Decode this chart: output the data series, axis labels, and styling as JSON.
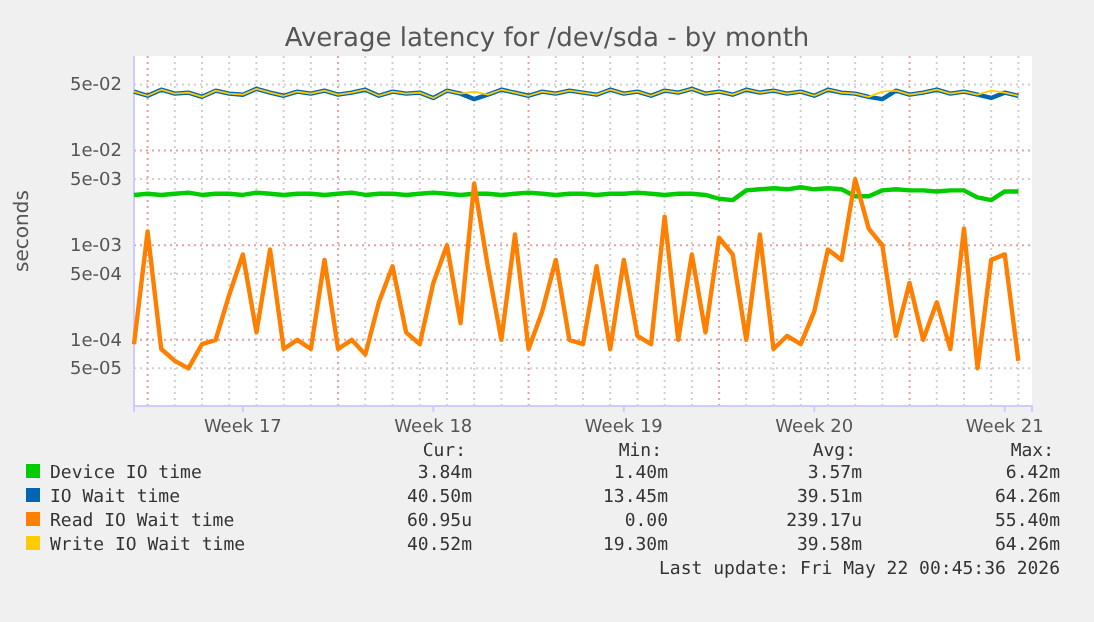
{
  "chart_data": {
    "type": "line",
    "title": "Average latency for /dev/sda - by month",
    "ylabel": "seconds",
    "log": true,
    "grid": true,
    "legend": "bottom",
    "xlim": [
      "2026-04-19T12:00",
      "2026-05-22T12:00"
    ],
    "xticks": [
      {
        "value": "2026-04-23T12:00",
        "label": "Week 17"
      },
      {
        "value": "2026-04-30T12:00",
        "label": "Week 18"
      },
      {
        "value": "2026-05-07T12:00",
        "label": "Week 19"
      },
      {
        "value": "2026-05-14T12:00",
        "label": "Week 20"
      },
      {
        "value": "2026-05-21T12:00",
        "label": "Week 21"
      }
    ],
    "ylim": [
      2e-05,
      0.1
    ],
    "yticks": [
      {
        "value": 5e-05,
        "label": "5e-05"
      },
      {
        "value": 0.0001,
        "label": "1e-04"
      },
      {
        "value": 0.0005,
        "label": "5e-04"
      },
      {
        "value": 0.001,
        "label": "1e-03"
      },
      {
        "value": 0.005,
        "label": "5e-03"
      },
      {
        "value": 0.01,
        "label": "1e-02"
      },
      {
        "value": 0.05,
        "label": "5e-02"
      }
    ],
    "x": [
      "2026-04-19T12:00",
      "2026-04-20T00:00",
      "2026-04-20T12:00",
      "2026-04-21T00:00",
      "2026-04-21T12:00",
      "2026-04-22T00:00",
      "2026-04-22T12:00",
      "2026-04-23T00:00",
      "2026-04-23T12:00",
      "2026-04-24T00:00",
      "2026-04-24T12:00",
      "2026-04-25T00:00",
      "2026-04-25T12:00",
      "2026-04-26T00:00",
      "2026-04-26T12:00",
      "2026-04-27T00:00",
      "2026-04-27T12:00",
      "2026-04-28T00:00",
      "2026-04-28T12:00",
      "2026-04-29T00:00",
      "2026-04-29T12:00",
      "2026-04-30T00:00",
      "2026-04-30T12:00",
      "2026-05-01T00:00",
      "2026-05-01T12:00",
      "2026-05-02T00:00",
      "2026-05-02T12:00",
      "2026-05-03T00:00",
      "2026-05-03T12:00",
      "2026-05-04T00:00",
      "2026-05-04T12:00",
      "2026-05-05T00:00",
      "2026-05-05T12:00",
      "2026-05-06T00:00",
      "2026-05-06T12:00",
      "2026-05-07T00:00",
      "2026-05-07T12:00",
      "2026-05-08T00:00",
      "2026-05-08T12:00",
      "2026-05-09T00:00",
      "2026-05-09T12:00",
      "2026-05-10T00:00",
      "2026-05-10T12:00",
      "2026-05-11T00:00",
      "2026-05-11T12:00",
      "2026-05-12T00:00",
      "2026-05-12T12:00",
      "2026-05-13T00:00",
      "2026-05-13T12:00",
      "2026-05-14T00:00",
      "2026-05-14T12:00",
      "2026-05-15T00:00",
      "2026-05-15T12:00",
      "2026-05-16T00:00",
      "2026-05-16T12:00",
      "2026-05-17T00:00",
      "2026-05-17T12:00",
      "2026-05-18T00:00",
      "2026-05-18T12:00",
      "2026-05-19T00:00",
      "2026-05-19T12:00",
      "2026-05-20T00:00",
      "2026-05-20T12:00",
      "2026-05-21T00:00",
      "2026-05-21T12:00",
      "2026-05-22T00:00"
    ],
    "series": [
      {
        "name": "Device IO time",
        "color": "#00cc00",
        "values": [
          0.0034,
          0.0035,
          0.0034,
          0.0035,
          0.0036,
          0.0034,
          0.0035,
          0.0035,
          0.0034,
          0.0036,
          0.0035,
          0.0034,
          0.0035,
          0.0035,
          0.0034,
          0.0035,
          0.0036,
          0.0034,
          0.0035,
          0.0035,
          0.0034,
          0.0035,
          0.0036,
          0.0035,
          0.0034,
          0.0035,
          0.0035,
          0.0034,
          0.0035,
          0.0036,
          0.0035,
          0.0034,
          0.0035,
          0.0035,
          0.0034,
          0.0035,
          0.0035,
          0.0036,
          0.0035,
          0.0034,
          0.0035,
          0.0035,
          0.0034,
          0.0031,
          0.003,
          0.0038,
          0.0039,
          0.004,
          0.0039,
          0.0041,
          0.0039,
          0.004,
          0.0039,
          0.0033,
          0.0033,
          0.0038,
          0.0039,
          0.0038,
          0.0038,
          0.0037,
          0.0038,
          0.0038,
          0.0032,
          0.003,
          0.0037,
          0.0037
        ]
      },
      {
        "name": "IO Wait time",
        "color": "#0066b3",
        "values": [
          0.042,
          0.038,
          0.044,
          0.04,
          0.041,
          0.037,
          0.043,
          0.04,
          0.039,
          0.045,
          0.041,
          0.038,
          0.042,
          0.04,
          0.043,
          0.039,
          0.041,
          0.044,
          0.038,
          0.042,
          0.04,
          0.041,
          0.036,
          0.043,
          0.04,
          0.035,
          0.039,
          0.044,
          0.041,
          0.038,
          0.042,
          0.04,
          0.043,
          0.041,
          0.039,
          0.044,
          0.04,
          0.042,
          0.038,
          0.043,
          0.041,
          0.045,
          0.04,
          0.042,
          0.039,
          0.044,
          0.041,
          0.043,
          0.04,
          0.042,
          0.038,
          0.044,
          0.041,
          0.04,
          0.037,
          0.035,
          0.043,
          0.039,
          0.041,
          0.044,
          0.04,
          0.042,
          0.039,
          0.036,
          0.041,
          0.038
        ]
      },
      {
        "name": "Read IO Wait time",
        "color": "#ff8000",
        "values": [
          9e-05,
          0.0014,
          8e-05,
          6e-05,
          5e-05,
          9e-05,
          0.0001,
          0.0003,
          0.0008,
          0.00012,
          0.0009,
          8e-05,
          0.0001,
          8e-05,
          0.0007,
          8e-05,
          0.0001,
          7e-05,
          0.00025,
          0.0006,
          0.00012,
          9e-05,
          0.0004,
          0.001,
          0.00015,
          0.0045,
          0.0006,
          0.0001,
          0.0013,
          8e-05,
          0.0002,
          0.0007,
          0.0001,
          9e-05,
          0.0006,
          8e-05,
          0.0007,
          0.00011,
          9e-05,
          0.002,
          0.0001,
          0.0008,
          0.00012,
          0.0012,
          0.0008,
          0.0001,
          0.0013,
          8e-05,
          0.00011,
          9e-05,
          0.0002,
          0.0009,
          0.0007,
          0.005,
          0.0015,
          0.001,
          0.00011,
          0.0004,
          0.0001,
          0.00025,
          8e-05,
          0.0015,
          5e-05,
          0.0007,
          0.0008,
          6e-05
        ]
      },
      {
        "name": "Write IO Wait time",
        "color": "#ffcc00",
        "values": [
          0.042,
          0.038,
          0.044,
          0.04,
          0.041,
          0.037,
          0.043,
          0.04,
          0.039,
          0.045,
          0.041,
          0.038,
          0.042,
          0.04,
          0.043,
          0.039,
          0.041,
          0.044,
          0.038,
          0.042,
          0.04,
          0.041,
          0.036,
          0.043,
          0.04,
          0.042,
          0.039,
          0.044,
          0.041,
          0.038,
          0.042,
          0.04,
          0.043,
          0.041,
          0.039,
          0.044,
          0.04,
          0.042,
          0.038,
          0.043,
          0.041,
          0.045,
          0.04,
          0.042,
          0.039,
          0.044,
          0.041,
          0.043,
          0.04,
          0.042,
          0.038,
          0.044,
          0.041,
          0.04,
          0.037,
          0.042,
          0.043,
          0.039,
          0.041,
          0.044,
          0.04,
          0.042,
          0.039,
          0.043,
          0.041,
          0.038
        ]
      }
    ],
    "annotations": [
      "Cur:",
      "Min:",
      "Avg:",
      "Max:",
      "3.84m",
      "1.40m",
      "3.57m",
      "6.42m",
      "40.50m",
      "13.45m",
      "39.51m",
      "64.26m",
      "60.95u",
      "0.00",
      "239.17u",
      "55.40m",
      "40.52m",
      "19.30m",
      "39.58m",
      "64.26m",
      "Last update: Fri May 22 00:45:36 2026"
    ]
  }
}
